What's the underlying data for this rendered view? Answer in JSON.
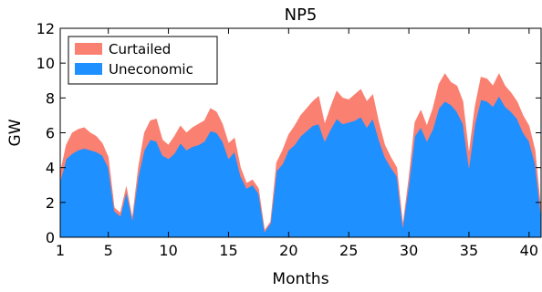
{
  "chart_data": {
    "type": "area",
    "title": "NP5",
    "xlabel": "Months",
    "ylabel": "GW",
    "xlim": [
      1,
      41
    ],
    "ylim": [
      0,
      12
    ],
    "xticks": [
      1,
      5,
      10,
      15,
      20,
      25,
      30,
      35,
      40
    ],
    "yticks": [
      0,
      2,
      4,
      6,
      8,
      10,
      12
    ],
    "grid": false,
    "legend_position": "top-left",
    "stacked": true,
    "x": [
      1.0,
      1.5,
      2.0,
      2.5,
      3.0,
      3.5,
      4.0,
      4.5,
      5.0,
      5.5,
      6.0,
      6.5,
      7.0,
      7.5,
      8.0,
      8.5,
      9.0,
      9.5,
      10.0,
      10.5,
      11.0,
      11.5,
      12.0,
      12.5,
      13.0,
      13.5,
      14.0,
      14.5,
      15.0,
      15.5,
      16.0,
      16.5,
      17.0,
      17.5,
      18.0,
      18.5,
      19.0,
      19.5,
      20.0,
      20.5,
      21.0,
      21.5,
      22.0,
      22.5,
      23.0,
      23.5,
      24.0,
      24.5,
      25.0,
      25.5,
      26.0,
      26.5,
      27.0,
      27.5,
      28.0,
      28.5,
      29.0,
      29.5,
      30.0,
      30.5,
      31.0,
      31.5,
      32.0,
      32.5,
      33.0,
      33.5,
      34.0,
      34.5,
      35.0,
      35.5,
      36.0,
      36.5,
      37.0,
      37.5,
      38.0,
      38.5,
      39.0,
      39.5,
      40.0,
      40.5,
      41.0
    ],
    "series": [
      {
        "name": "Uneconomic",
        "color": "#1e90ff",
        "values": [
          3.2,
          4.5,
          4.8,
          5.0,
          5.1,
          5.0,
          4.9,
          4.7,
          4.0,
          1.5,
          1.2,
          2.6,
          1.0,
          3.5,
          5.0,
          5.6,
          5.5,
          4.7,
          4.5,
          4.8,
          5.4,
          5.0,
          5.2,
          5.3,
          5.5,
          6.1,
          6.0,
          5.5,
          4.5,
          4.9,
          3.5,
          2.8,
          3.0,
          2.5,
          0.3,
          0.8,
          3.8,
          4.2,
          5.0,
          5.3,
          5.8,
          6.1,
          6.4,
          6.5,
          5.5,
          6.2,
          6.8,
          6.5,
          6.6,
          6.7,
          6.9,
          6.3,
          6.8,
          5.6,
          4.6,
          4.0,
          3.5,
          0.6,
          3.0,
          5.8,
          6.3,
          5.5,
          6.2,
          7.4,
          7.8,
          7.6,
          7.2,
          6.5,
          4.0,
          6.5,
          7.9,
          7.8,
          7.5,
          8.1,
          7.5,
          7.2,
          6.8,
          6.0,
          5.5,
          4.2,
          1.2
        ]
      },
      {
        "name": "Curtailed",
        "color": "#fa8072",
        "values": [
          0.5,
          0.8,
          1.2,
          1.2,
          1.2,
          1.0,
          0.9,
          0.7,
          0.6,
          0.2,
          0.2,
          0.3,
          0.1,
          0.5,
          1.0,
          1.1,
          1.3,
          0.9,
          0.8,
          1.0,
          1.0,
          1.0,
          1.1,
          1.2,
          1.2,
          1.3,
          1.2,
          1.0,
          0.9,
          0.8,
          0.5,
          0.3,
          0.3,
          0.3,
          0.1,
          0.1,
          0.5,
          0.8,
          0.9,
          1.1,
          1.2,
          1.3,
          1.4,
          1.6,
          1.0,
          1.3,
          1.6,
          1.5,
          1.3,
          1.5,
          1.6,
          1.5,
          1.4,
          1.0,
          0.7,
          0.6,
          0.5,
          0.1,
          0.4,
          0.8,
          1.0,
          0.9,
          1.2,
          1.4,
          1.6,
          1.3,
          1.5,
          1.3,
          0.8,
          1.0,
          1.3,
          1.3,
          1.2,
          1.3,
          1.2,
          1.1,
          1.0,
          1.0,
          0.9,
          0.8,
          0.3
        ]
      }
    ]
  }
}
